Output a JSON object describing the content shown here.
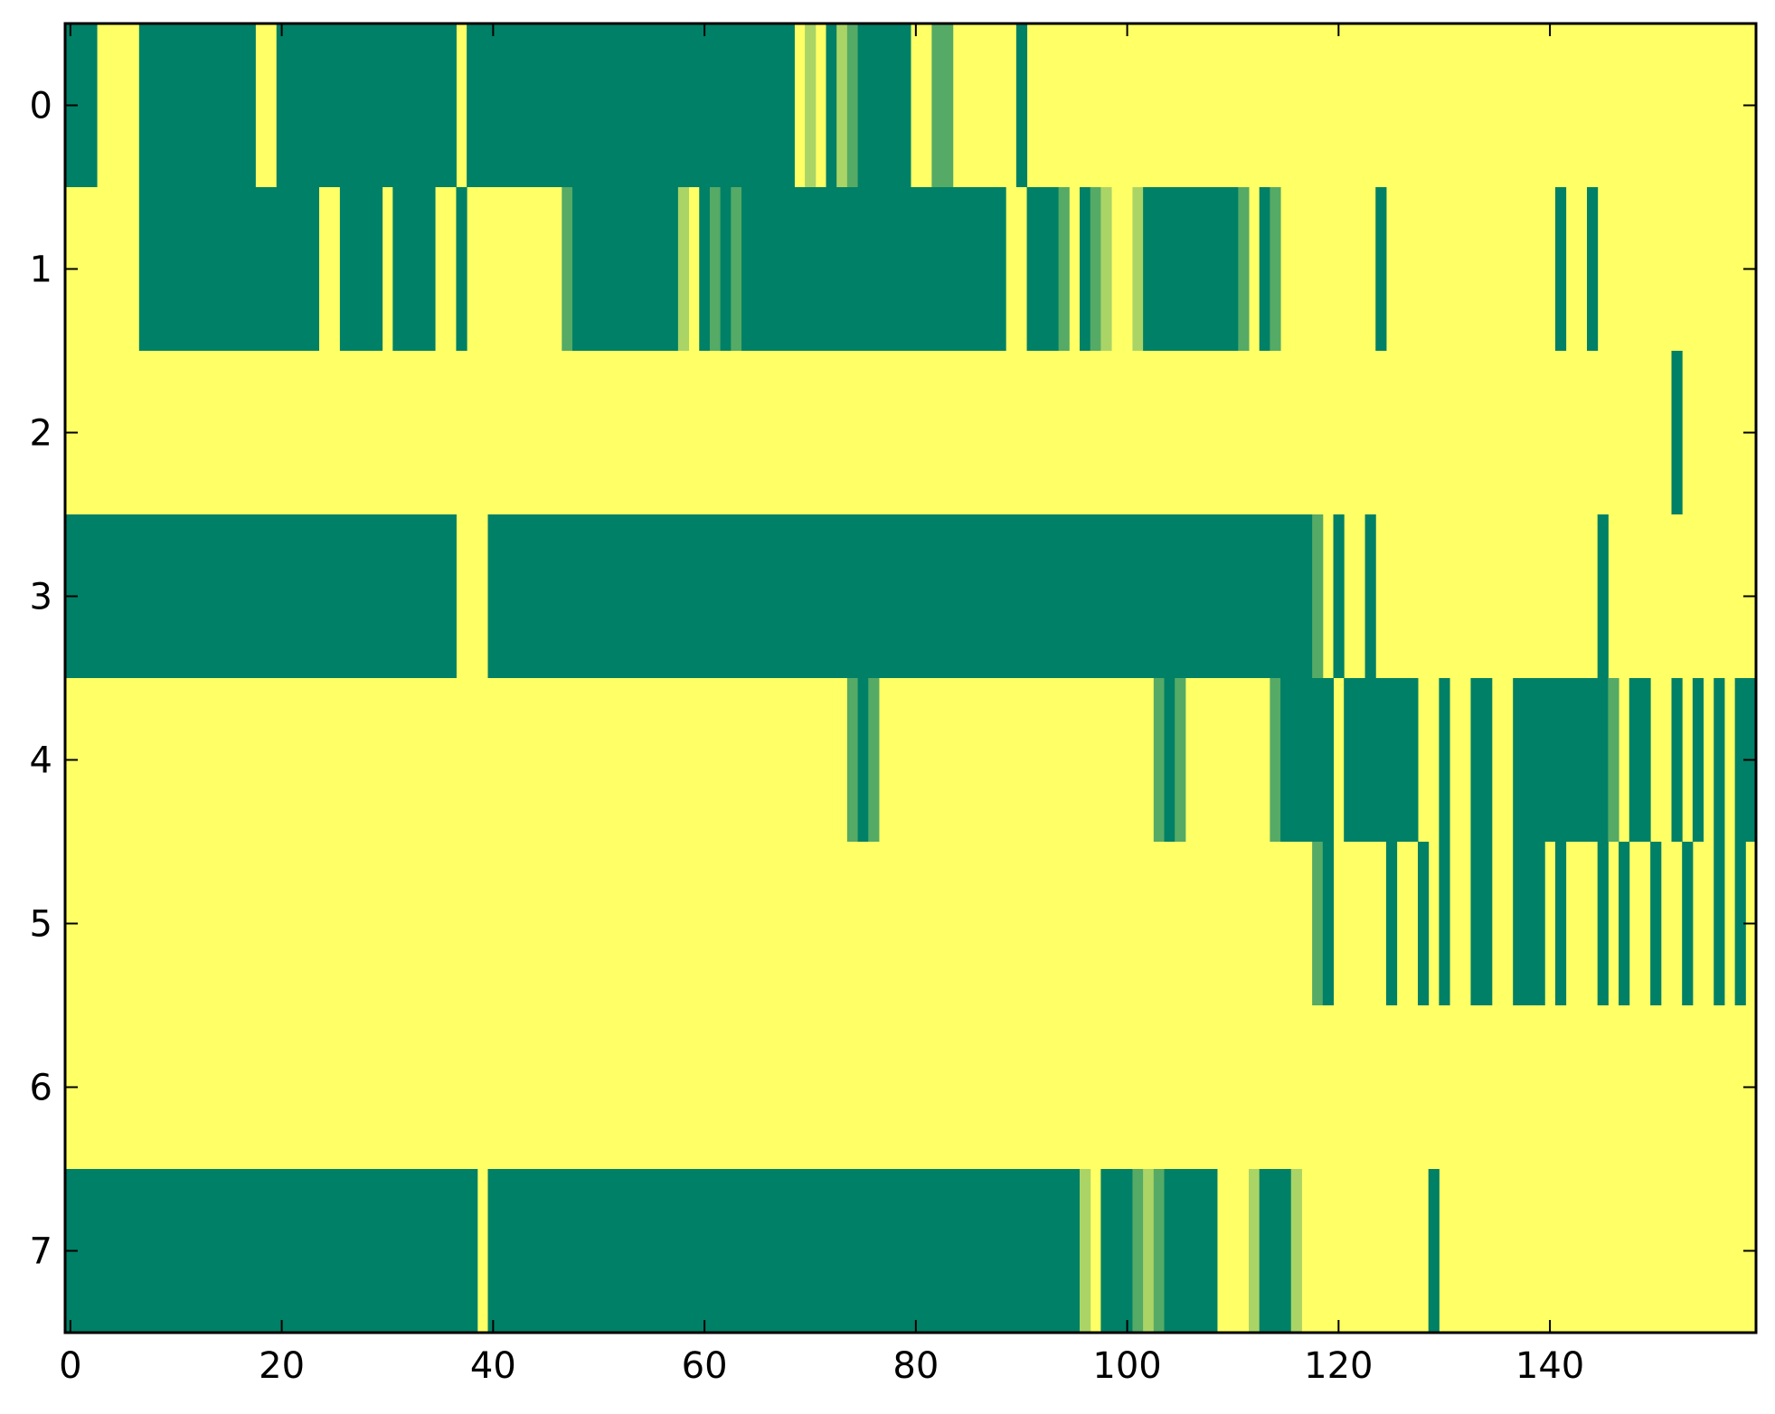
{
  "chart_data": {
    "type": "heatmap",
    "colormap": {
      "0": "#008066",
      "0.33": "#55aa66",
      "0.67": "#aad466",
      "1": "#ffff66"
    },
    "x_ticks": [
      0,
      20,
      40,
      60,
      80,
      100,
      120,
      140
    ],
    "y_ticks": [
      0,
      1,
      2,
      3,
      4,
      5,
      6,
      7
    ],
    "xlim": [
      -0.5,
      159.5
    ],
    "ylim": [
      7.5,
      -0.5
    ],
    "n_cols": 160,
    "grid": false,
    "legend": "none",
    "default_value": 1,
    "rows": [
      {
        "row": 0,
        "segments": [
          [
            0,
            2,
            0
          ],
          [
            7,
            9,
            0
          ],
          [
            10,
            10,
            0
          ],
          [
            11,
            17,
            0
          ],
          [
            20,
            35,
            0
          ],
          [
            36,
            36,
            0
          ],
          [
            38,
            68,
            0
          ],
          [
            70,
            70,
            0.67
          ],
          [
            72,
            72,
            0
          ],
          [
            73,
            73,
            0.67
          ],
          [
            74,
            74,
            0.33
          ],
          [
            75,
            79,
            0
          ],
          [
            82,
            82,
            0.33
          ],
          [
            83,
            83,
            0.33
          ],
          [
            90,
            90,
            0
          ]
        ]
      },
      {
        "row": 1,
        "segments": [
          [
            7,
            23,
            0
          ],
          [
            26,
            29,
            0
          ],
          [
            31,
            34,
            0
          ],
          [
            37,
            37,
            0
          ],
          [
            47,
            47,
            0.33
          ],
          [
            48,
            57,
            0
          ],
          [
            58,
            58,
            0.67
          ],
          [
            60,
            60,
            0
          ],
          [
            61,
            61,
            0.33
          ],
          [
            62,
            62,
            0
          ],
          [
            63,
            63,
            0.33
          ],
          [
            64,
            88,
            0
          ],
          [
            91,
            93,
            0
          ],
          [
            94,
            94,
            0.33
          ],
          [
            96,
            96,
            0
          ],
          [
            97,
            97,
            0.33
          ],
          [
            98,
            98,
            0.67
          ],
          [
            101,
            101,
            0.67
          ],
          [
            102,
            110,
            0
          ],
          [
            111,
            111,
            0.33
          ],
          [
            113,
            113,
            0
          ],
          [
            114,
            114,
            0.33
          ],
          [
            124,
            124,
            0
          ],
          [
            141,
            141,
            0
          ],
          [
            144,
            144,
            0
          ]
        ]
      },
      {
        "row": 2,
        "segments": [
          [
            152,
            152,
            0
          ]
        ]
      },
      {
        "row": 3,
        "segments": [
          [
            0,
            36,
            0
          ],
          [
            40,
            117,
            0
          ],
          [
            118,
            118,
            0.33
          ],
          [
            120,
            120,
            0
          ],
          [
            123,
            123,
            0
          ],
          [
            145,
            145,
            0
          ]
        ]
      },
      {
        "row": 4,
        "segments": [
          [
            74,
            74,
            0.33
          ],
          [
            75,
            75,
            0
          ],
          [
            76,
            76,
            0.33
          ],
          [
            103,
            103,
            0.33
          ],
          [
            104,
            104,
            0
          ],
          [
            105,
            105,
            0.33
          ],
          [
            114,
            114,
            0.33
          ],
          [
            115,
            119,
            0
          ],
          [
            121,
            127,
            0
          ],
          [
            130,
            130,
            0
          ],
          [
            133,
            134,
            0
          ],
          [
            137,
            145,
            0
          ],
          [
            146,
            146,
            0.33
          ],
          [
            148,
            149,
            0
          ],
          [
            152,
            152,
            0
          ],
          [
            154,
            154,
            0
          ],
          [
            156,
            156,
            0
          ],
          [
            158,
            159,
            0
          ]
        ]
      },
      {
        "row": 5,
        "segments": [
          [
            118,
            118,
            0.33
          ],
          [
            119,
            119,
            0
          ],
          [
            125,
            125,
            0
          ],
          [
            128,
            128,
            0
          ],
          [
            130,
            130,
            0
          ],
          [
            133,
            134,
            0
          ],
          [
            137,
            139,
            0
          ],
          [
            141,
            141,
            0
          ],
          [
            145,
            145,
            0
          ],
          [
            147,
            147,
            0
          ],
          [
            150,
            150,
            0
          ],
          [
            153,
            153,
            0
          ],
          [
            156,
            156,
            0
          ],
          [
            158,
            158,
            0
          ]
        ]
      },
      {
        "row": 6,
        "segments": []
      },
      {
        "row": 7,
        "segments": [
          [
            0,
            38,
            0
          ],
          [
            40,
            95,
            0
          ],
          [
            96,
            96,
            0.67
          ],
          [
            98,
            100,
            0
          ],
          [
            101,
            101,
            0.33
          ],
          [
            102,
            102,
            0.67
          ],
          [
            103,
            103,
            0.33
          ],
          [
            104,
            108,
            0
          ],
          [
            112,
            112,
            0.67
          ],
          [
            113,
            115,
            0
          ],
          [
            116,
            116,
            0.67
          ],
          [
            129,
            129,
            0
          ]
        ]
      }
    ]
  }
}
